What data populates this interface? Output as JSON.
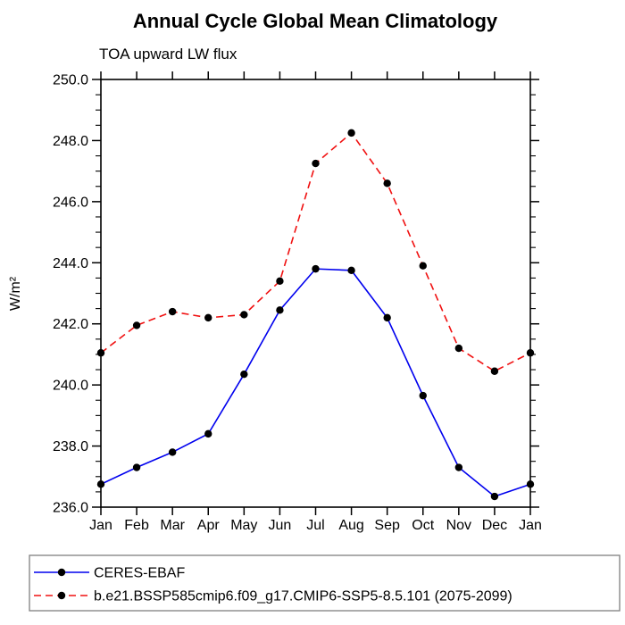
{
  "title": "Annual Cycle Global Mean Climatology",
  "subtitle": "TOA upward LW flux",
  "ylabel": "W/m²",
  "colors": {
    "obs_line": "#0000ee",
    "model_line": "#f01010",
    "marker": "#000000",
    "axis": "#000000",
    "legend_border": "#808080"
  },
  "chart_data": {
    "type": "line",
    "title": "Annual Cycle Global Mean Climatology",
    "subtitle": "TOA upward LW flux",
    "xlabel": "",
    "ylabel": "W/m²",
    "categories": [
      "Jan",
      "Feb",
      "Mar",
      "Apr",
      "May",
      "Jun",
      "Jul",
      "Aug",
      "Sep",
      "Oct",
      "Nov",
      "Dec",
      "Jan"
    ],
    "series": [
      {
        "name": "CERES-EBAF",
        "color": "#0000ee",
        "line_style": "solid",
        "marker": "black-dot",
        "values": [
          236.75,
          237.3,
          237.8,
          238.4,
          240.35,
          242.45,
          243.8,
          243.75,
          242.2,
          239.65,
          237.3,
          236.35,
          236.75
        ]
      },
      {
        "name": "b.e21.BSSP585cmip6.f09_g17.CMIP6-SSP5-8.5.101 (2075-2099)",
        "color": "#f01010",
        "line_style": "dashed",
        "marker": "black-dot",
        "values": [
          241.05,
          241.95,
          242.4,
          242.2,
          242.3,
          243.4,
          247.25,
          248.25,
          246.6,
          243.9,
          241.2,
          240.45,
          241.05
        ]
      }
    ],
    "ylim": [
      236.0,
      250.0
    ],
    "ytick_major": [
      236,
      238,
      240,
      242,
      244,
      246,
      248,
      250
    ],
    "ytick_minor_step": 0.5,
    "grid": false,
    "legend_position": "bottom-left"
  }
}
